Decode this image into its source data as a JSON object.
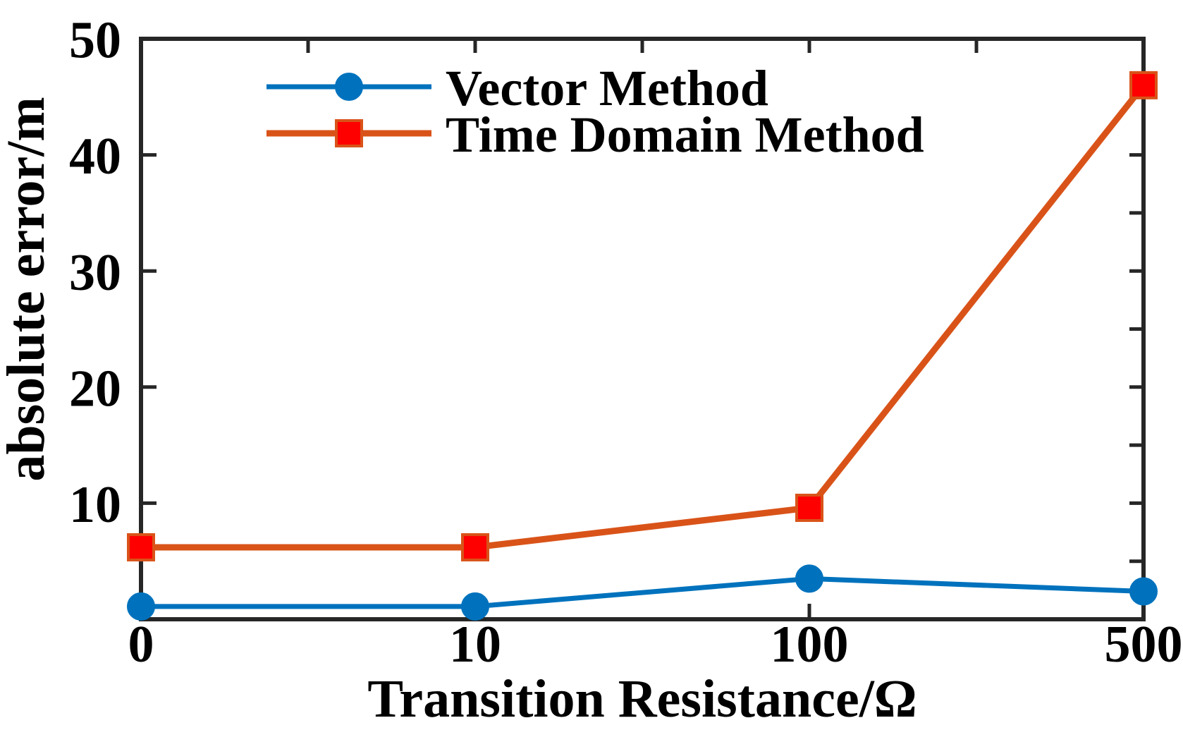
{
  "chart_data": {
    "type": "line",
    "title": "",
    "xlabel": "Transition Resistance/Ω",
    "ylabel": "absolute error/m",
    "x_scale": "ordinal",
    "categories": [
      0,
      10,
      100,
      500
    ],
    "x_tick_labels": [
      "0",
      "10",
      "100",
      "500"
    ],
    "ylim": [
      0,
      50
    ],
    "y_major_ticks": [
      10,
      20,
      30,
      40,
      50
    ],
    "y_major_tick_labels": [
      "10",
      "20",
      "30",
      "40",
      "50"
    ],
    "y_minor_ticks_right": [
      5,
      10,
      15,
      20,
      25,
      30,
      35,
      40,
      45
    ],
    "x_minor_ticks_top_index": [
      0.5,
      1,
      1.5,
      2,
      2.5
    ],
    "grid": false,
    "background_color": "#ffffff",
    "axis_color": "#262626",
    "text_color": "#000000",
    "legend_position": "top-left-inside",
    "series": [
      {
        "name": "Vector Method",
        "color": "#0072BD",
        "line_width": 7,
        "marker": "circle",
        "marker_fill": "#0072BD",
        "marker_edge": "#0072BD",
        "values": [
          1.1,
          1.1,
          3.5,
          2.4
        ]
      },
      {
        "name": "Time Domain Method",
        "color": "#D95319",
        "line_width": 9,
        "marker": "square",
        "marker_fill": "#FF0000",
        "marker_edge": "#D95319",
        "values": [
          6.2,
          6.2,
          9.6,
          46
        ]
      }
    ]
  }
}
